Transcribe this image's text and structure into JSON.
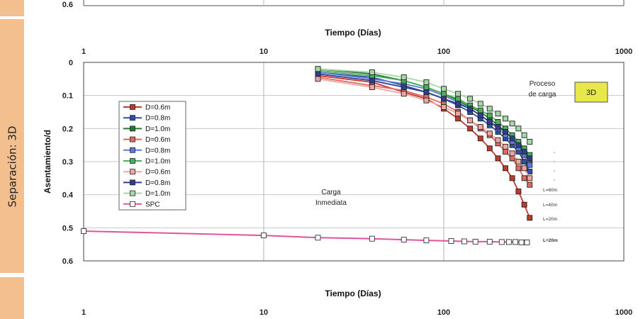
{
  "row_label": "Separación: 3D",
  "top_chart": {
    "y_tick": "0.6",
    "xlabel": "Tiempo (Días)",
    "x_ticks": [
      "1",
      "10",
      "100",
      "1000"
    ]
  },
  "chart_data": {
    "type": "scatter",
    "title": "",
    "xlabel": "Tiempo (Días)",
    "ylabel": "Asentamiento/d",
    "x_scale": "log",
    "xlim": [
      1,
      1000
    ],
    "ylim": [
      0,
      0.6
    ],
    "y_inverted": true,
    "x_ticks": [
      "1",
      "10",
      "100",
      "1000"
    ],
    "y_ticks": [
      "0",
      "0.1",
      "0.2",
      "0.3",
      "0.4",
      "0.5",
      "0.6"
    ],
    "grid": true,
    "legend_position": "left",
    "series": [
      {
        "name": "D=0.6m",
        "color": "#c0392b",
        "x": [
          20,
          40,
          60,
          80,
          100,
          120,
          140,
          160,
          180,
          200,
          220,
          240,
          260,
          280,
          300
        ],
        "y": [
          0.04,
          0.06,
          0.09,
          0.11,
          0.14,
          0.17,
          0.2,
          0.23,
          0.26,
          0.29,
          0.32,
          0.35,
          0.39,
          0.43,
          0.47
        ]
      },
      {
        "name": "D=0.8m",
        "color": "#2c4fa8",
        "x": [
          20,
          40,
          60,
          80,
          100,
          120,
          140,
          160,
          180,
          200,
          220,
          240,
          260,
          280,
          300
        ],
        "y": [
          0.03,
          0.045,
          0.07,
          0.09,
          0.11,
          0.13,
          0.15,
          0.17,
          0.19,
          0.21,
          0.23,
          0.25,
          0.27,
          0.3,
          0.33
        ]
      },
      {
        "name": "D=1.0m",
        "color": "#237a32",
        "x": [
          20,
          40,
          60,
          80,
          100,
          120,
          140,
          160,
          180,
          200,
          220,
          240,
          260,
          280,
          300
        ],
        "y": [
          0.02,
          0.035,
          0.055,
          0.075,
          0.095,
          0.115,
          0.135,
          0.15,
          0.17,
          0.19,
          0.21,
          0.23,
          0.25,
          0.27,
          0.3
        ]
      },
      {
        "name": "D=0.6m",
        "color": "#e06a62",
        "x": [
          20,
          40,
          60,
          80,
          100,
          120,
          140,
          160,
          180,
          200,
          220,
          240,
          260,
          280,
          300
        ],
        "y": [
          0.045,
          0.07,
          0.085,
          0.105,
          0.125,
          0.15,
          0.175,
          0.2,
          0.22,
          0.245,
          0.27,
          0.29,
          0.32,
          0.35,
          0.37
        ]
      },
      {
        "name": "D=0.8m",
        "color": "#5d7ad6",
        "x": [
          20,
          40,
          60,
          80,
          100,
          120,
          140,
          160,
          180,
          200,
          220,
          240,
          260,
          280,
          300
        ],
        "y": [
          0.03,
          0.05,
          0.065,
          0.08,
          0.1,
          0.12,
          0.14,
          0.16,
          0.18,
          0.2,
          0.22,
          0.24,
          0.26,
          0.28,
          0.31
        ]
      },
      {
        "name": "D=1.0m",
        "color": "#4cb05a",
        "x": [
          20,
          40,
          60,
          80,
          100,
          120,
          140,
          160,
          180,
          200,
          220,
          240,
          260,
          280,
          300
        ],
        "y": [
          0.025,
          0.04,
          0.055,
          0.075,
          0.095,
          0.11,
          0.13,
          0.145,
          0.16,
          0.18,
          0.2,
          0.22,
          0.24,
          0.26,
          0.28
        ]
      },
      {
        "name": "D=0.6m",
        "color": "#f0a5a0",
        "x": [
          20,
          40,
          60,
          80,
          100,
          120,
          140,
          160,
          180,
          200,
          220,
          240,
          260,
          280,
          300
        ],
        "y": [
          0.05,
          0.075,
          0.095,
          0.115,
          0.135,
          0.155,
          0.175,
          0.195,
          0.215,
          0.235,
          0.255,
          0.275,
          0.3,
          0.32,
          0.35
        ]
      },
      {
        "name": "D=0.8m",
        "color": "#2e3f8f",
        "x": [
          20,
          40,
          60,
          80,
          100,
          120,
          140,
          160,
          180,
          200,
          220,
          240,
          260,
          280,
          300
        ],
        "y": [
          0.035,
          0.055,
          0.075,
          0.09,
          0.11,
          0.125,
          0.14,
          0.16,
          0.18,
          0.195,
          0.21,
          0.23,
          0.25,
          0.27,
          0.29
        ]
      },
      {
        "name": "D=1.0m",
        "color": "#a5d8a5",
        "x": [
          20,
          40,
          60,
          80,
          100,
          120,
          140,
          160,
          180,
          200,
          220,
          240,
          260,
          280,
          300
        ],
        "y": [
          0.02,
          0.03,
          0.045,
          0.06,
          0.08,
          0.095,
          0.11,
          0.125,
          0.14,
          0.155,
          0.17,
          0.185,
          0.2,
          0.22,
          0.24
        ]
      },
      {
        "name": "SPC",
        "color": "#e0559a",
        "marker": "white",
        "x": [
          1,
          10,
          20,
          40,
          60,
          80,
          110,
          130,
          150,
          180,
          210,
          230,
          250,
          270,
          290
        ],
        "y": [
          0.51,
          0.523,
          0.53,
          0.533,
          0.536,
          0.538,
          0.54,
          0.541,
          0.542,
          0.542,
          0.543,
          0.543,
          0.543,
          0.544,
          0.544
        ]
      }
    ],
    "annotations": {
      "carga_inmediata": [
        "Carga",
        "Inmediata"
      ],
      "proceso": [
        "Proceso",
        "de carga"
      ],
      "box_label": "3D",
      "L_labels": [
        "L=60m",
        "L=40m",
        "L=20m"
      ],
      "L_spc": "L=20m"
    }
  },
  "bottom_axis": {
    "xlabel": "Tiempo (Días)",
    "x_ticks": [
      "1",
      "10",
      "100",
      "1000"
    ]
  }
}
